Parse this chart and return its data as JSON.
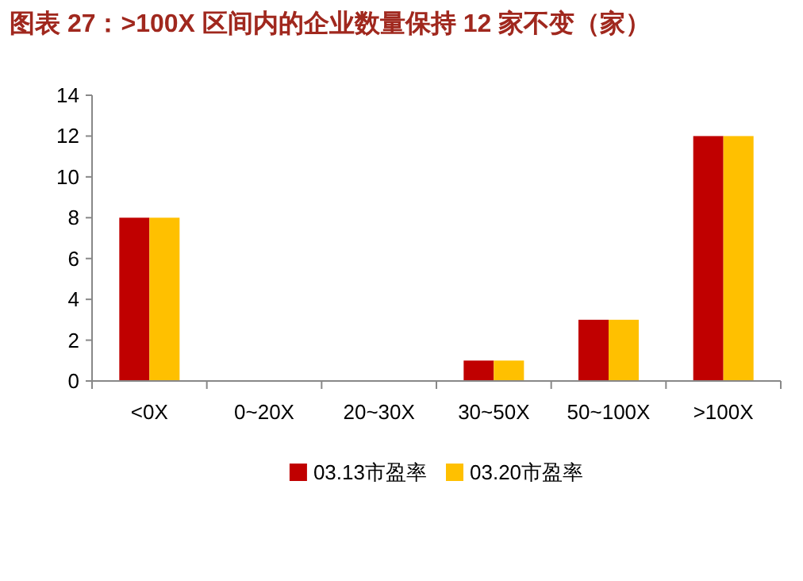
{
  "chart_data": {
    "type": "bar",
    "title": "图表 27：>100X 区间内的企业数量保持 12 家不变（家）",
    "categories": [
      "<0X",
      "0~20X",
      "20~30X",
      "30~50X",
      "50~100X",
      ">100X"
    ],
    "series": [
      {
        "name": "03.13市盈率",
        "color": "#c00000",
        "values": [
          8,
          0,
          0,
          1,
          3,
          12
        ]
      },
      {
        "name": "03.20市盈率",
        "color": "#ffc000",
        "values": [
          8,
          0,
          0,
          1,
          3,
          12
        ]
      }
    ],
    "ylim": [
      0,
      14
    ],
    "yticks": [
      0,
      2,
      4,
      6,
      8,
      10,
      12,
      14
    ],
    "grid": false,
    "legend": "bottom"
  }
}
